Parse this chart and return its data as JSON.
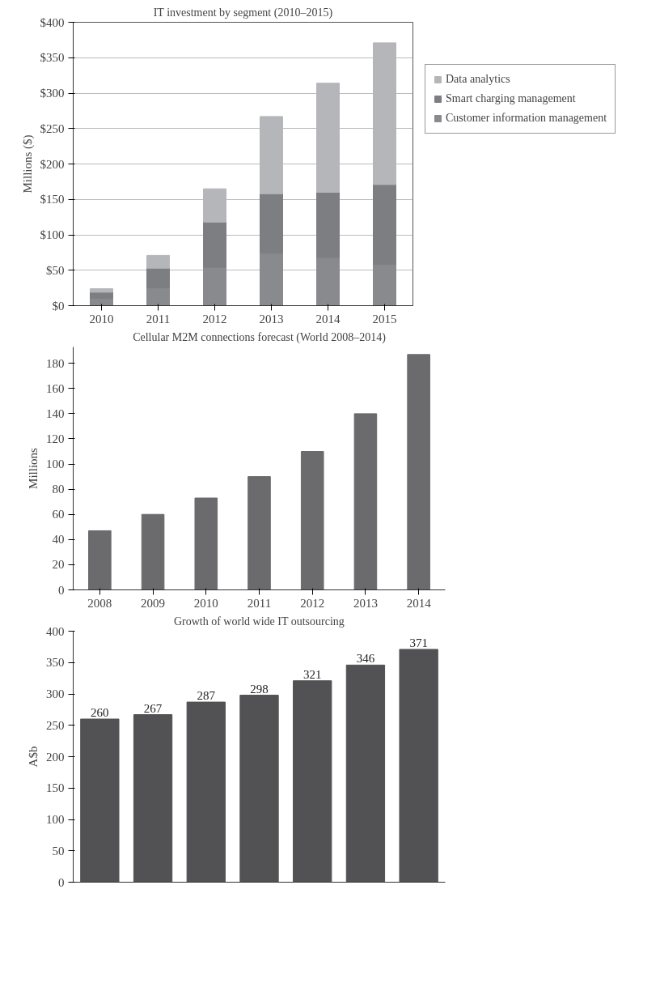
{
  "chart_data": [
    {
      "type": "bar",
      "title": "IT investment by segment (2010–2015)",
      "ylabel": "Millions ($)",
      "categories": [
        "2010",
        "2011",
        "2012",
        "2013",
        "2014",
        "2015"
      ],
      "stacked": true,
      "ylim": [
        0,
        400
      ],
      "yticks": [
        {
          "value": 0,
          "label": "$0"
        },
        {
          "value": 50,
          "label": "$50"
        },
        {
          "value": 100,
          "label": "$100"
        },
        {
          "value": 150,
          "label": "$150"
        },
        {
          "value": 200,
          "label": "$200"
        },
        {
          "value": 250,
          "label": "$250"
        },
        {
          "value": 300,
          "label": "$300"
        },
        {
          "value": 350,
          "label": "$350"
        },
        {
          "value": 400,
          "label": "$400"
        }
      ],
      "grid": "y",
      "legend": "right",
      "series": [
        {
          "name": "Customer information management",
          "color": "#898a8e",
          "values": [
            10,
            25,
            54,
            74,
            68,
            58
          ]
        },
        {
          "name": "Smart charging management",
          "color": "#7d7e82",
          "values": [
            9,
            28,
            64,
            84,
            92,
            113
          ]
        },
        {
          "name": "Data analytics",
          "color": "#b5b6b9",
          "values": [
            5,
            18,
            47,
            109,
            154,
            200
          ]
        }
      ]
    },
    {
      "type": "bar",
      "title": "Cellular M2M connections forecast (World 2008–2014)",
      "ylabel": "Millions",
      "categories": [
        "2008",
        "2009",
        "2010",
        "2011",
        "2012",
        "2013",
        "2014"
      ],
      "ylim": [
        0,
        193
      ],
      "yticks": [
        0,
        20,
        40,
        60,
        80,
        100,
        120,
        140,
        160,
        180
      ],
      "series": [
        {
          "color": "#6b6b6d",
          "values": [
            47,
            60,
            73,
            90,
            110,
            140,
            187
          ]
        }
      ]
    },
    {
      "type": "bar",
      "title": "Growth of world wide IT outsourcing",
      "ylabel": "A$b",
      "categories": [
        null,
        null,
        null,
        null,
        null,
        null,
        null
      ],
      "ylim": [
        0,
        400
      ],
      "yticks": [
        0,
        50,
        100,
        150,
        200,
        250,
        300,
        350,
        400
      ],
      "tick_labels": "y",
      "data_labels": true,
      "series": [
        {
          "color": "#525254",
          "values": [
            260,
            267,
            287,
            298,
            321,
            346,
            371
          ]
        }
      ]
    }
  ]
}
